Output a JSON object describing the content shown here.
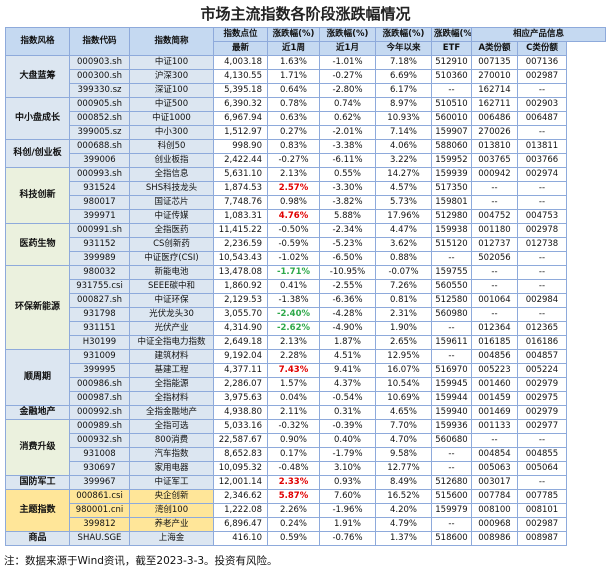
{
  "title": "市场主流指数各阶段涨跌幅情况",
  "header": {
    "row1": [
      "指数风格",
      "指数代码",
      "指数简称",
      "指数点位",
      "涨跌幅(%)",
      "涨跌幅(%)",
      "涨跌幅(%)",
      "涨跌幅(%)",
      "相应产品信息"
    ],
    "row2": [
      "最新",
      "近1周",
      "近1月",
      "今年以来",
      "ETF",
      "A类份额",
      "C类份额"
    ]
  },
  "groups": [
    {
      "name": "大盘蓝筹",
      "color": "#dce6f1",
      "rows": [
        {
          "cells": [
            "000903.sh",
            "中证100",
            "4,003.18",
            "1.63%",
            "-1.01%",
            "7.18%",
            "512910",
            "007135",
            "007136"
          ]
        },
        {
          "cells": [
            "000300.sh",
            "沪深300",
            "4,130.55",
            "1.71%",
            "-0.27%",
            "6.69%",
            "510360",
            "270010",
            "002987"
          ]
        },
        {
          "cells": [
            "399330.sz",
            "深证100",
            "5,395.18",
            "0.64%",
            "-2.80%",
            "6.17%",
            "--",
            "162714",
            "--"
          ]
        }
      ]
    },
    {
      "name": "中小盘成长",
      "color": "#dce6f1",
      "rows": [
        {
          "cells": [
            "000905.sh",
            "中证500",
            "6,390.32",
            "0.78%",
            "0.74%",
            "8.97%",
            "510510",
            "162711",
            "002903"
          ]
        },
        {
          "cells": [
            "000852.sh",
            "中证1000",
            "6,967.94",
            "0.63%",
            "0.62%",
            "10.93%",
            "560010",
            "006486",
            "006487"
          ]
        },
        {
          "cells": [
            "399005.sz",
            "中小300",
            "1,512.97",
            "0.27%",
            "-2.01%",
            "7.14%",
            "159907",
            "270026",
            "--"
          ]
        }
      ]
    },
    {
      "name": "科创/创业板",
      "color": "#dce6f1",
      "rows": [
        {
          "cells": [
            "000688.sh",
            "科创50",
            "998.90",
            "0.83%",
            "-3.38%",
            "4.06%",
            "588060",
            "013810",
            "013811"
          ]
        },
        {
          "cells": [
            "399006",
            "创业板指",
            "2,422.44",
            "-0.27%",
            "-6.11%",
            "3.22%",
            "159952",
            "003765",
            "003766"
          ]
        }
      ]
    },
    {
      "name": "科技创新",
      "color": "#ebf1de",
      "rows": [
        {
          "cells": [
            "000993.sh",
            "全指信息",
            "5,631.10",
            "2.13%",
            "0.55%",
            "14.27%",
            "159939",
            "000942",
            "002974"
          ]
        },
        {
          "cells": [
            "931524",
            "SHS科技龙头",
            "1,874.53",
            "2.57%",
            "-3.30%",
            "4.57%",
            "517350",
            "--",
            "--"
          ],
          "tone": "up"
        },
        {
          "cells": [
            "980017",
            "国证芯片",
            "7,748.76",
            "0.98%",
            "-3.82%",
            "5.73%",
            "159801",
            "--",
            "--"
          ]
        },
        {
          "cells": [
            "399971",
            "中证传媒",
            "1,083.31",
            "4.76%",
            "5.88%",
            "17.96%",
            "512980",
            "004752",
            "004753"
          ],
          "tone": "up"
        }
      ]
    },
    {
      "name": "医药生物",
      "color": "#ebf1de",
      "rows": [
        {
          "cells": [
            "000991.sh",
            "全指医药",
            "11,415.22",
            "-0.50%",
            "-2.34%",
            "4.47%",
            "159938",
            "001180",
            "002978"
          ]
        },
        {
          "cells": [
            "931152",
            "CS创新药",
            "2,236.59",
            "-0.59%",
            "-5.23%",
            "3.62%",
            "515120",
            "012737",
            "012738"
          ]
        },
        {
          "cells": [
            "399989",
            "中证医疗(CSI)",
            "10,543.43",
            "-1.02%",
            "-6.50%",
            "0.88%",
            "--",
            "502056",
            "--"
          ]
        }
      ]
    },
    {
      "name": "环保新能源",
      "color": "#ebf1de",
      "rows": [
        {
          "cells": [
            "980032",
            "新能电池",
            "13,478.08",
            "-1.71%",
            "-10.95%",
            "-0.07%",
            "159755",
            "--",
            "--"
          ],
          "tone": "down"
        },
        {
          "cells": [
            "931755.csi",
            "SEEE碳中和",
            "1,860.92",
            "0.41%",
            "-2.55%",
            "7.26%",
            "560550",
            "--",
            "--"
          ]
        },
        {
          "cells": [
            "000827.sh",
            "中证环保",
            "2,129.53",
            "-1.38%",
            "-6.36%",
            "0.81%",
            "512580",
            "001064",
            "002984"
          ]
        },
        {
          "cells": [
            "931798",
            "光伏龙头30",
            "3,055.70",
            "-2.40%",
            "-4.28%",
            "2.31%",
            "560980",
            "--",
            "--"
          ],
          "tone": "down"
        },
        {
          "cells": [
            "931151",
            "光伏产业",
            "4,314.90",
            "-2.62%",
            "-4.90%",
            "1.90%",
            "--",
            "012364",
            "012365"
          ],
          "tone": "down"
        },
        {
          "cells": [
            "H30199",
            "中证全指电力指数",
            "2,649.18",
            "2.13%",
            "1.87%",
            "2.65%",
            "159611",
            "016185",
            "016186"
          ]
        }
      ]
    },
    {
      "name": "顺周期",
      "color": "#dce6f1",
      "rows": [
        {
          "cells": [
            "931009",
            "建筑材料",
            "9,192.04",
            "2.28%",
            "4.51%",
            "12.95%",
            "--",
            "004856",
            "004857"
          ]
        },
        {
          "cells": [
            "399995",
            "基建工程",
            "4,377.11",
            "7.43%",
            "9.41%",
            "16.07%",
            "516970",
            "005223",
            "005224"
          ],
          "tone": "up"
        },
        {
          "cells": [
            "000986.sh",
            "全指能源",
            "2,286.07",
            "1.57%",
            "4.37%",
            "10.54%",
            "159945",
            "001460",
            "002979"
          ]
        },
        {
          "cells": [
            "000987.sh",
            "全指材料",
            "3,975.63",
            "0.04%",
            "-0.54%",
            "10.69%",
            "159944",
            "001459",
            "002975"
          ]
        }
      ]
    },
    {
      "name": "金融地产",
      "color": "#dce6f1",
      "rows": [
        {
          "cells": [
            "000992.sh",
            "全指金融地产",
            "4,938.80",
            "2.11%",
            "0.31%",
            "4.65%",
            "159940",
            "001469",
            "002979"
          ]
        }
      ]
    },
    {
      "name": "消费升级",
      "color": "#ebf1de",
      "rows": [
        {
          "cells": [
            "000989.sh",
            "全指可选",
            "5,033.16",
            "-0.32%",
            "-0.39%",
            "7.70%",
            "159936",
            "001133",
            "002977"
          ]
        },
        {
          "cells": [
            "000932.sh",
            "800消费",
            "22,587.67",
            "0.90%",
            "0.40%",
            "4.70%",
            "560680",
            "--",
            "--"
          ]
        },
        {
          "cells": [
            "931008",
            "汽车指数",
            "8,652.83",
            "0.17%",
            "-1.79%",
            "9.58%",
            "--",
            "004854",
            "004855"
          ]
        },
        {
          "cells": [
            "930697",
            "家用电器",
            "10,095.32",
            "-0.48%",
            "3.10%",
            "12.77%",
            "--",
            "005063",
            "005064"
          ]
        }
      ]
    },
    {
      "name": "国防军工",
      "color": "#dce6f1",
      "rows": [
        {
          "cells": [
            "399967",
            "中证军工",
            "12,001.14",
            "2.33%",
            "0.93%",
            "8.49%",
            "512680",
            "003017",
            "--"
          ],
          "tone": "up"
        }
      ]
    },
    {
      "name": "主题指数",
      "color": "#ffe699",
      "rows": [
        {
          "cells": [
            "000861.csi",
            "央企创新",
            "2,346.62",
            "5.87%",
            "7.60%",
            "16.52%",
            "515600",
            "007784",
            "007785"
          ],
          "tone": "up"
        },
        {
          "cells": [
            "980001.cni",
            "湾创100",
            "1,222.08",
            "2.26%",
            "-1.96%",
            "4.20%",
            "159979",
            "008100",
            "008101"
          ]
        },
        {
          "cells": [
            "399812",
            "养老产业",
            "6,896.47",
            "0.24%",
            "1.91%",
            "4.79%",
            "--",
            "000968",
            "002987"
          ]
        }
      ]
    },
    {
      "name": "商品",
      "color": "#dce6f1",
      "rows": [
        {
          "cells": [
            "SHAU.SGE",
            "上海金",
            "416.10",
            "0.59%",
            "-0.76%",
            "1.37%",
            "518600",
            "008986",
            "008987"
          ]
        }
      ]
    }
  ],
  "footer": "注：数据来源于Wind资讯，截至2023-3-3。投资有风险。"
}
